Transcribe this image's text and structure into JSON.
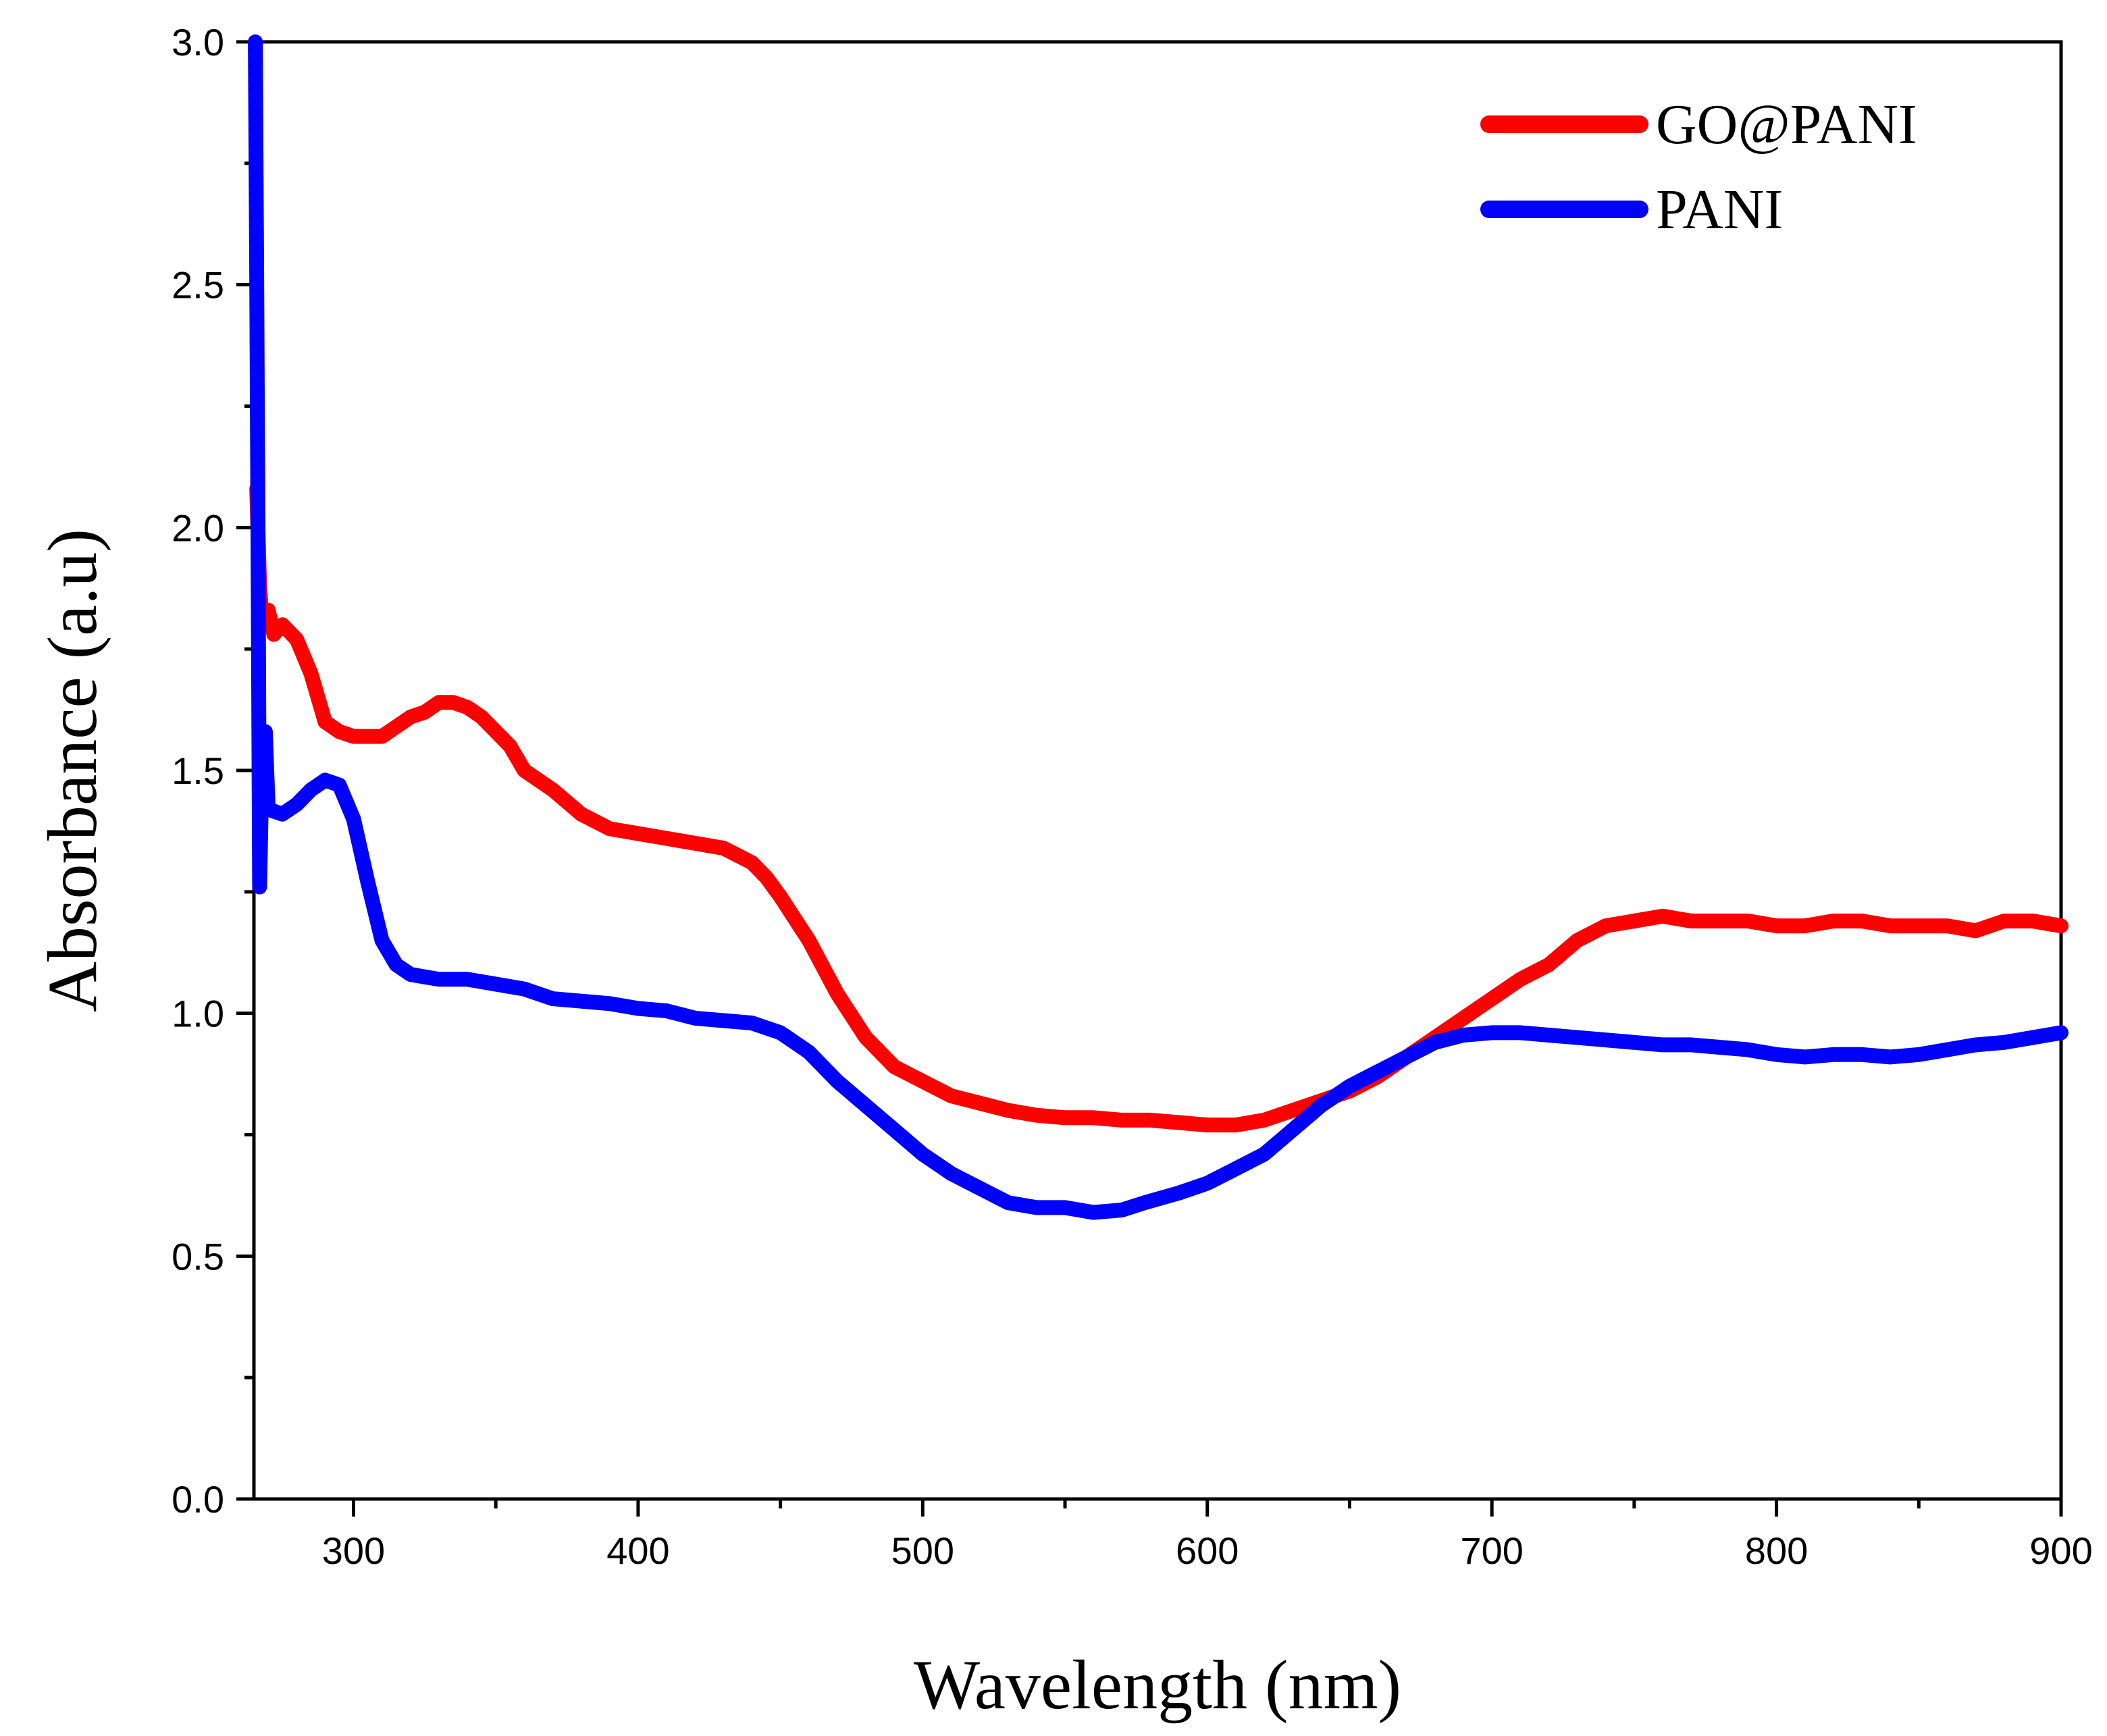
{
  "chart_data": {
    "type": "line",
    "title": "",
    "xlabel": "Wavelength (nm)",
    "ylabel": "Absorbance (a.u)",
    "xlim": [
      265,
      900
    ],
    "ylim": [
      0.0,
      3.0
    ],
    "xticks": [
      300,
      400,
      500,
      600,
      700,
      800,
      900
    ],
    "xtick_labels": [
      "300",
      "400",
      "500",
      "600",
      "700",
      "800",
      "900"
    ],
    "xminor": [
      350,
      450,
      550,
      650,
      750,
      850
    ],
    "yticks": [
      0.0,
      0.5,
      1.0,
      1.5,
      2.0,
      2.5,
      3.0
    ],
    "ytick_labels": [
      "0.0",
      "0.5",
      "1.0",
      "1.5",
      "2.0",
      "2.5",
      "3.0"
    ],
    "yminor": [
      0.25,
      0.75,
      1.25,
      1.75,
      2.25,
      2.75
    ],
    "grid": false,
    "legend_position": "top-right",
    "series": [
      {
        "name": "GO@PANI",
        "color": "#ff0000",
        "x": [
          266,
          267,
          268,
          270,
          272,
          275,
          280,
          285,
          290,
          295,
          300,
          305,
          310,
          315,
          320,
          325,
          330,
          335,
          340,
          345,
          350,
          355,
          360,
          370,
          380,
          390,
          400,
          410,
          420,
          430,
          440,
          445,
          450,
          460,
          470,
          480,
          490,
          500,
          510,
          520,
          530,
          540,
          550,
          560,
          570,
          580,
          590,
          600,
          610,
          620,
          630,
          640,
          650,
          660,
          670,
          680,
          690,
          700,
          710,
          720,
          730,
          740,
          750,
          760,
          770,
          780,
          790,
          800,
          810,
          820,
          830,
          840,
          850,
          860,
          870,
          880,
          890,
          900
        ],
        "values": [
          2.08,
          1.88,
          1.8,
          1.83,
          1.78,
          1.8,
          1.77,
          1.7,
          1.6,
          1.58,
          1.57,
          1.57,
          1.57,
          1.59,
          1.61,
          1.62,
          1.64,
          1.64,
          1.63,
          1.61,
          1.58,
          1.55,
          1.5,
          1.46,
          1.41,
          1.38,
          1.37,
          1.36,
          1.35,
          1.34,
          1.31,
          1.28,
          1.24,
          1.15,
          1.04,
          0.95,
          0.89,
          0.86,
          0.83,
          0.815,
          0.8,
          0.79,
          0.785,
          0.785,
          0.78,
          0.78,
          0.775,
          0.77,
          0.77,
          0.78,
          0.8,
          0.82,
          0.84,
          0.87,
          0.91,
          0.95,
          0.99,
          1.03,
          1.07,
          1.1,
          1.15,
          1.18,
          1.19,
          1.2,
          1.19,
          1.19,
          1.19,
          1.18,
          1.18,
          1.19,
          1.19,
          1.18,
          1.18,
          1.18,
          1.17,
          1.19,
          1.19,
          1.18
        ]
      },
      {
        "name": "PANI",
        "color": "#0000ff",
        "x": [
          265.5,
          266,
          266.5,
          267,
          268,
          269,
          270,
          275,
          280,
          285,
          290,
          295,
          300,
          305,
          310,
          315,
          320,
          330,
          340,
          350,
          360,
          370,
          380,
          390,
          400,
          410,
          420,
          430,
          440,
          450,
          460,
          470,
          480,
          490,
          500,
          510,
          520,
          530,
          540,
          550,
          560,
          570,
          578,
          590,
          600,
          610,
          620,
          630,
          640,
          650,
          660,
          670,
          680,
          690,
          700,
          710,
          720,
          730,
          740,
          750,
          760,
          770,
          780,
          790,
          800,
          810,
          820,
          830,
          840,
          850,
          860,
          870,
          880,
          890,
          900
        ],
        "values": [
          3.0,
          2.5,
          1.9,
          1.26,
          1.55,
          1.58,
          1.42,
          1.41,
          1.43,
          1.46,
          1.48,
          1.47,
          1.4,
          1.27,
          1.15,
          1.1,
          1.08,
          1.07,
          1.07,
          1.06,
          1.05,
          1.03,
          1.025,
          1.02,
          1.01,
          1.005,
          0.99,
          0.985,
          0.98,
          0.96,
          0.92,
          0.86,
          0.81,
          0.76,
          0.71,
          0.67,
          0.64,
          0.61,
          0.6,
          0.6,
          0.59,
          0.595,
          0.61,
          0.63,
          0.65,
          0.68,
          0.71,
          0.76,
          0.81,
          0.85,
          0.88,
          0.91,
          0.94,
          0.955,
          0.96,
          0.96,
          0.955,
          0.95,
          0.945,
          0.94,
          0.935,
          0.935,
          0.93,
          0.925,
          0.915,
          0.91,
          0.915,
          0.915,
          0.91,
          0.915,
          0.925,
          0.935,
          0.94,
          0.95,
          0.96
        ]
      }
    ]
  }
}
